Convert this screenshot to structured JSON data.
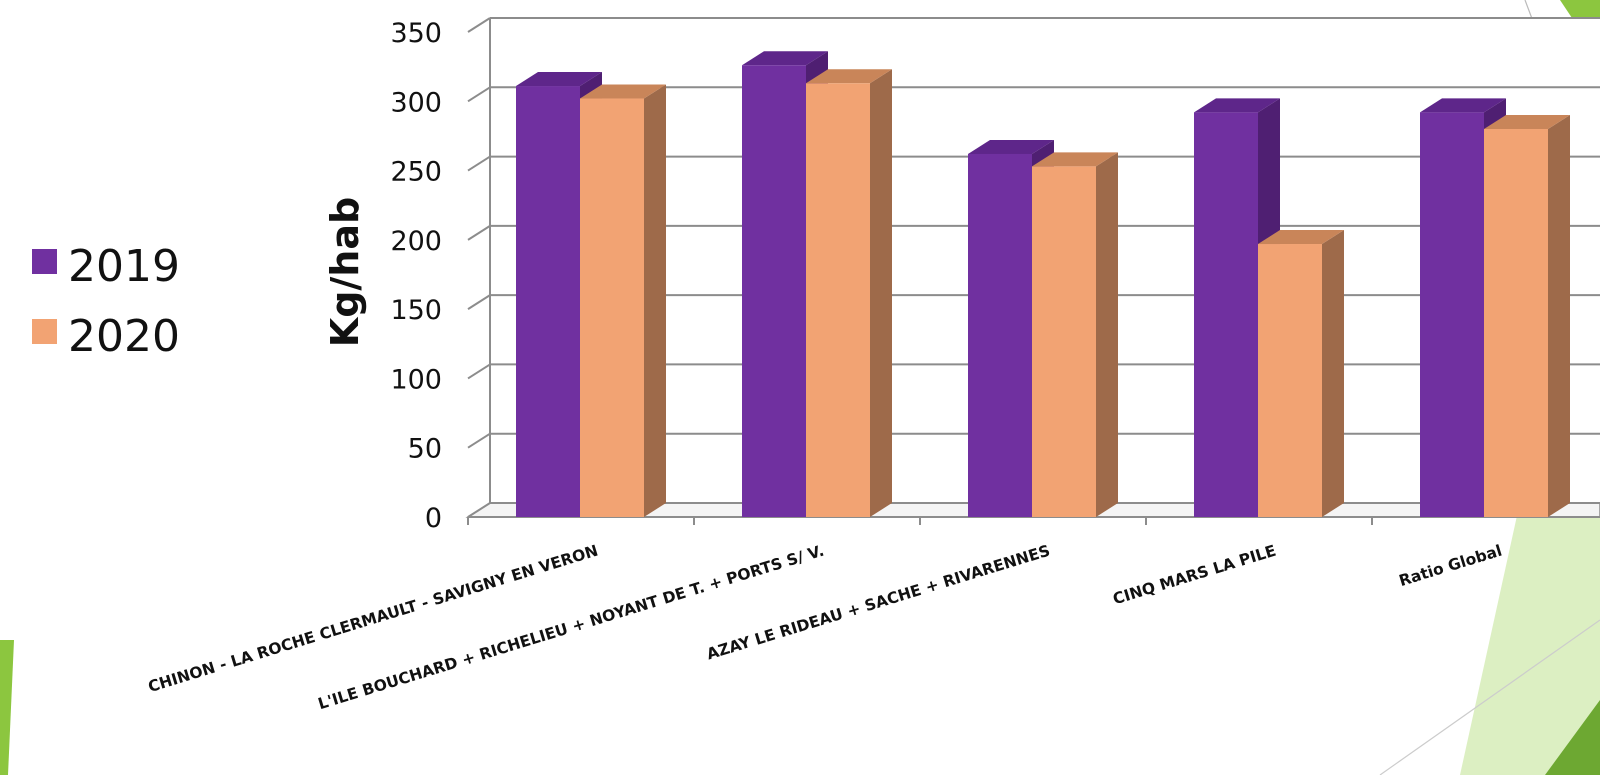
{
  "chart_data": {
    "type": "bar",
    "variant": "3d-clustered-column",
    "categories": [
      "CHINON - LA ROCHE CLERMAULT - SAVIGNY EN VERON",
      "L'ILE BOUCHARD + RICHELIEU + NOYANT DE T. + PORTS S/ V.",
      "AZAY LE RIDEAU + SACHE + RIVARENNES",
      "CINQ MARS LA PILE",
      "Ratio Global"
    ],
    "series": [
      {
        "name": "2019",
        "values": [
          311,
          326,
          262,
          292,
          292
        ],
        "color": "#7030A0",
        "side_color": "#4F1F72",
        "top_color": "#5E268A"
      },
      {
        "name": "2020",
        "values": [
          302,
          313,
          253,
          197,
          280
        ],
        "color": "#F2A373",
        "side_color": "#9E6A4A",
        "top_color": "#C98559"
      }
    ],
    "ylabel": "Kg/hab",
    "xlabel": "",
    "ylim": [
      0,
      350
    ],
    "yticks": [
      0,
      50,
      100,
      150,
      200,
      250,
      300,
      350
    ],
    "grid": true,
    "legend_position": "left"
  },
  "decor": {
    "accent_green": "#8CC63F",
    "accent_light_green": "#DCEFC2"
  }
}
